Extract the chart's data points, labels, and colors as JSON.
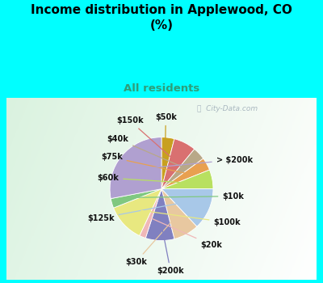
{
  "title": "Income distribution in Applewood, CO\n(%)",
  "subtitle": "All residents",
  "title_color": "#000000",
  "subtitle_color": "#2e9e7a",
  "background_cyan": "#00ffff",
  "watermark": "City-Data.com",
  "labels_ordered": [
    "$50k",
    "$150k",
    "$40k",
    "$75k",
    "$60k",
    "$125k",
    "$30k",
    "$200k",
    "$20k",
    "$100k",
    "$10k",
    "> $200k"
  ],
  "values_ordered": [
    4,
    7,
    4,
    4,
    6,
    13,
    8,
    9,
    2,
    12,
    3,
    28
  ],
  "colors_ordered": [
    "#c8a020",
    "#d97070",
    "#b8a888",
    "#e8a050",
    "#b8e060",
    "#a8c8e8",
    "#e8c8a0",
    "#8080c0",
    "#f0b8b8",
    "#e8e880",
    "#80c880",
    "#b0a0d0"
  ]
}
